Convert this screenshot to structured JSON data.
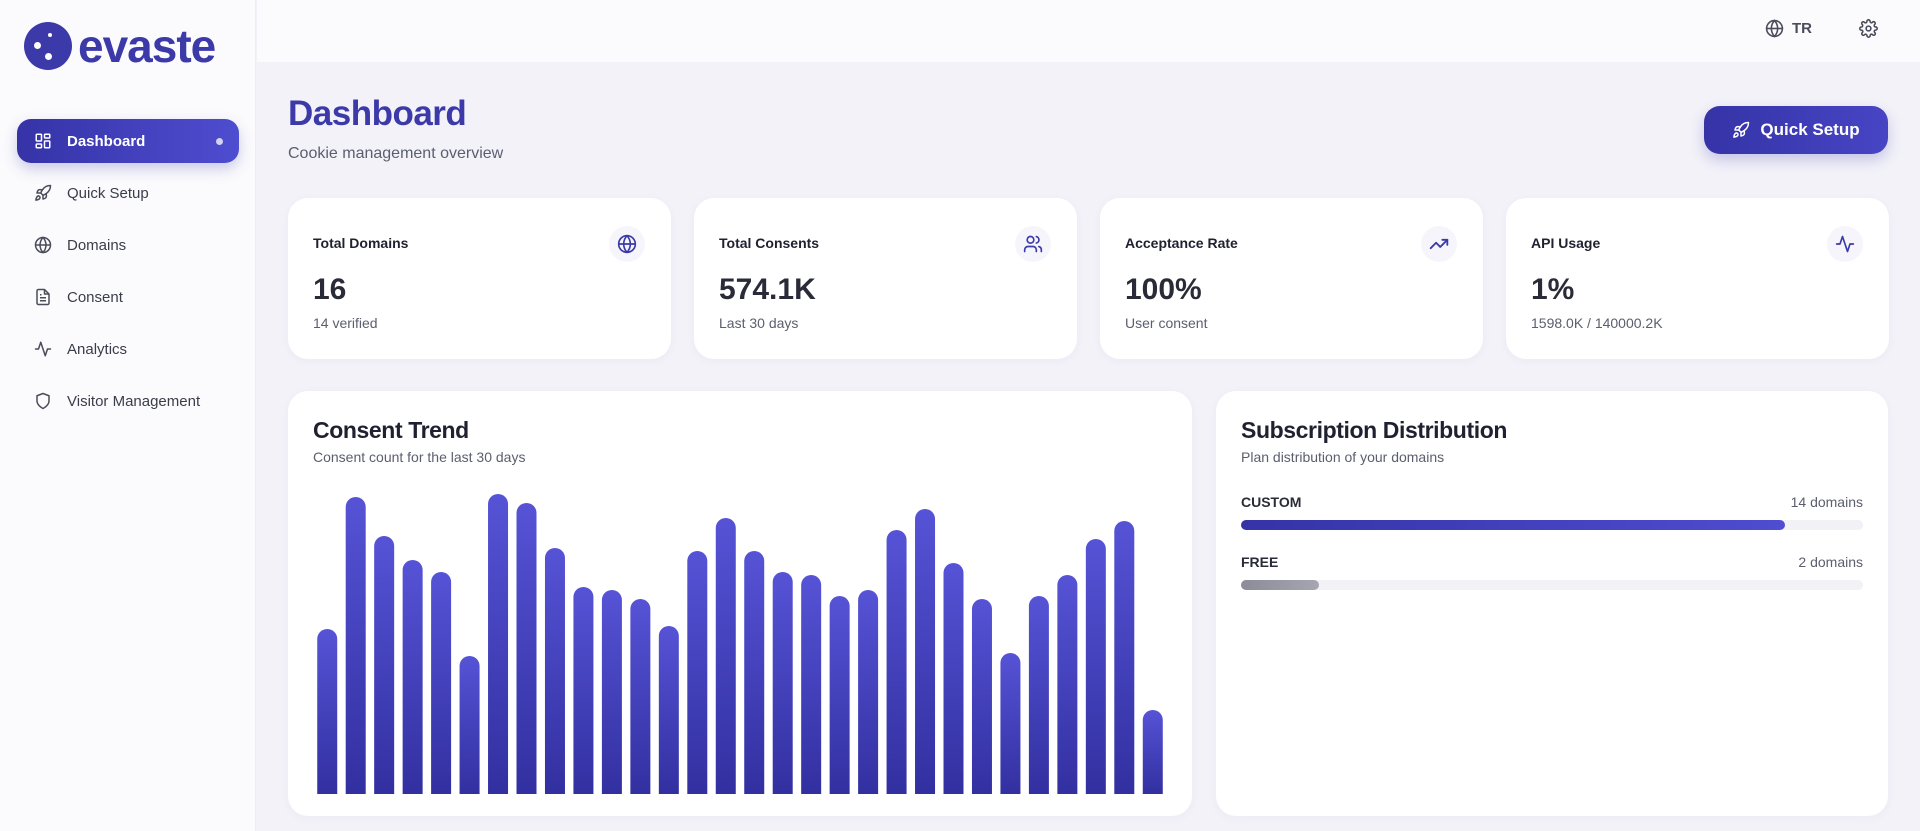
{
  "brand": {
    "name": "evaste"
  },
  "sidebar": {
    "items": [
      {
        "label": "Dashboard",
        "icon": "dashboard-grid-icon",
        "active": true
      },
      {
        "label": "Quick Setup",
        "icon": "rocket-icon"
      },
      {
        "label": "Domains",
        "icon": "globe-icon"
      },
      {
        "label": "Consent",
        "icon": "document-icon"
      },
      {
        "label": "Analytics",
        "icon": "activity-icon"
      },
      {
        "label": "Visitor Management",
        "icon": "shield-icon"
      }
    ]
  },
  "topbar": {
    "language": "TR"
  },
  "header": {
    "title": "Dashboard",
    "subtitle": "Cookie management overview",
    "quick_setup_label": "Quick Setup"
  },
  "stats": [
    {
      "label": "Total Domains",
      "value": "16",
      "sub": "14 verified",
      "icon": "globe-icon"
    },
    {
      "label": "Total Consents",
      "value": "574.1K",
      "sub": "Last 30 days",
      "icon": "users-icon"
    },
    {
      "label": "Acceptance Rate",
      "value": "100%",
      "sub": "User consent",
      "icon": "trending-up-icon"
    },
    {
      "label": "API Usage",
      "value": "1%",
      "sub": "1598.0K / 140000.2K",
      "icon": "activity-icon"
    }
  ],
  "trend": {
    "title": "Consent Trend",
    "subtitle": "Consent count for the last 30 days"
  },
  "distribution": {
    "title": "Subscription Distribution",
    "subtitle": "Plan distribution of your domains",
    "rows": [
      {
        "label": "CUSTOM",
        "count": "14 domains",
        "fraction": 0.875,
        "color": "#3b3aa8"
      },
      {
        "label": "FREE",
        "count": "2 domains",
        "fraction": 0.125,
        "color": "#8b8c98"
      }
    ]
  },
  "colors": {
    "accent": "#3b3aa8",
    "accent_light": "#5653d6"
  },
  "chart_data": {
    "type": "bar",
    "title": "Consent Trend",
    "ylim": [
      0,
      100
    ],
    "values": [
      55,
      99,
      86,
      78,
      74,
      46,
      100,
      97,
      82,
      69,
      68,
      65,
      56,
      81,
      92,
      81,
      74,
      73,
      66,
      68,
      88,
      95,
      77,
      65,
      47,
      66,
      73,
      85,
      91,
      28
    ]
  }
}
